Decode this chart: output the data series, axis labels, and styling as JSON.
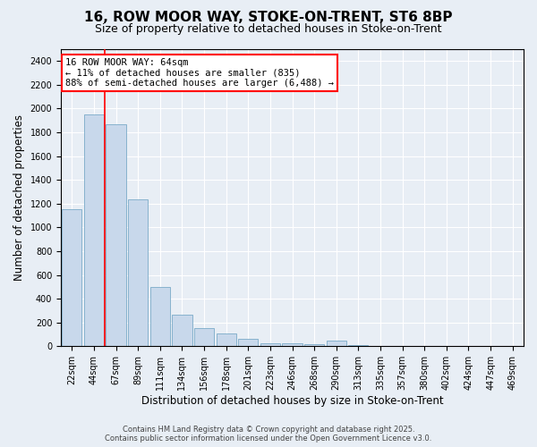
{
  "title1": "16, ROW MOOR WAY, STOKE-ON-TRENT, ST6 8BP",
  "title2": "Size of property relative to detached houses in Stoke-on-Trent",
  "xlabel": "Distribution of detached houses by size in Stoke-on-Trent",
  "ylabel": "Number of detached properties",
  "categories": [
    "22sqm",
    "44sqm",
    "67sqm",
    "89sqm",
    "111sqm",
    "134sqm",
    "156sqm",
    "178sqm",
    "201sqm",
    "223sqm",
    "246sqm",
    "268sqm",
    "290sqm",
    "313sqm",
    "335sqm",
    "357sqm",
    "380sqm",
    "402sqm",
    "424sqm",
    "447sqm",
    "469sqm"
  ],
  "values": [
    1150,
    1950,
    1870,
    1240,
    500,
    265,
    150,
    105,
    60,
    27,
    25,
    20,
    50,
    10,
    5,
    4,
    3,
    2,
    2,
    1,
    1
  ],
  "bar_color": "#c8d8eb",
  "bar_edge_color": "#7aaac8",
  "property_size": "64sqm",
  "annotation_text": "16 ROW MOOR WAY: 64sqm\n← 11% of detached houses are smaller (835)\n88% of semi-detached houses are larger (6,488) →",
  "annotation_box_color": "white",
  "annotation_box_edge": "red",
  "red_line_color": "red",
  "background_color": "#e8eef5",
  "plot_bg_color": "#e8eef5",
  "ylim": [
    0,
    2500
  ],
  "yticks": [
    0,
    200,
    400,
    600,
    800,
    1000,
    1200,
    1400,
    1600,
    1800,
    2000,
    2200,
    2400
  ],
  "footer1": "Contains HM Land Registry data © Crown copyright and database right 2025.",
  "footer2": "Contains public sector information licensed under the Open Government Licence v3.0.",
  "title_fontsize": 11,
  "subtitle_fontsize": 9,
  "tick_fontsize": 7,
  "label_fontsize": 8.5,
  "annotation_fontsize": 7.5,
  "red_line_x": 1.5
}
